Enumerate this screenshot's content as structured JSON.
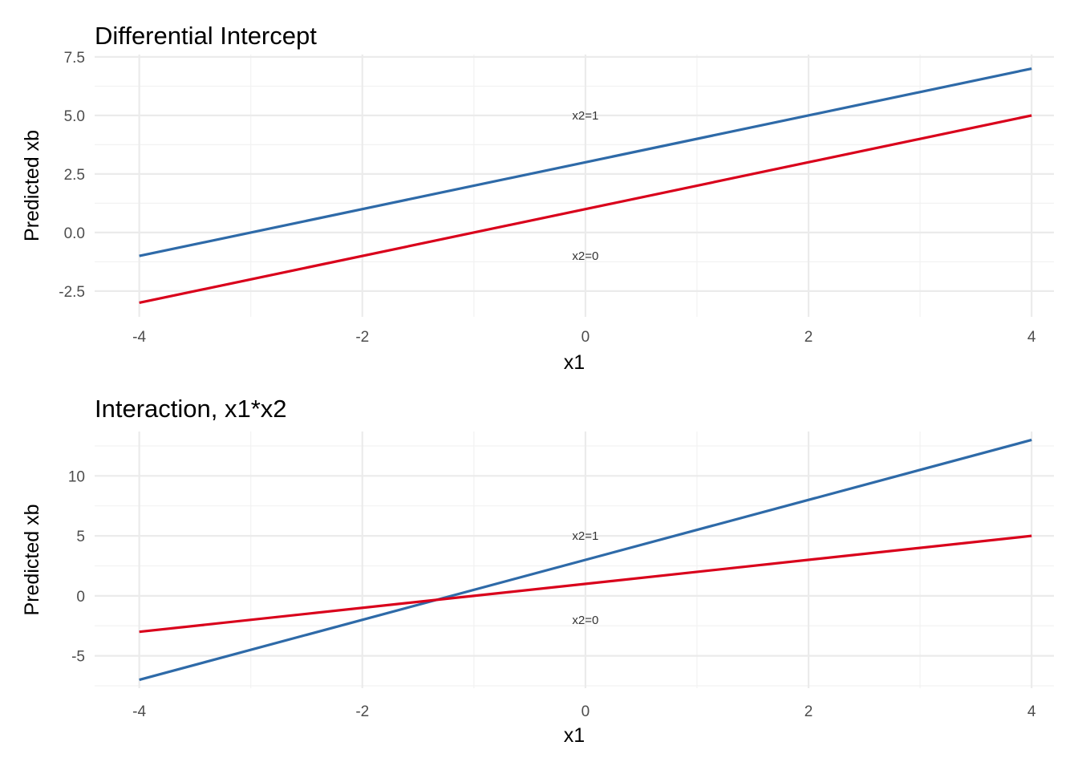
{
  "chart_data": [
    {
      "type": "line",
      "title": "Differential Intercept",
      "xlabel": "x1",
      "ylabel": "Predicted xb",
      "xlim": [
        -4.4,
        4.2
      ],
      "ylim": [
        -3.6,
        7.6
      ],
      "x_ticks": [
        -4,
        -2,
        0,
        2,
        4
      ],
      "x_tick_labels": [
        "-4",
        "-2",
        "0",
        "2",
        "4"
      ],
      "y_ticks": [
        -2.5,
        0,
        2.5,
        5,
        7.5
      ],
      "y_tick_labels": [
        "-2.5",
        "0.0",
        "2.5",
        "5.0",
        "7.5"
      ],
      "grid": true,
      "series": [
        {
          "name": "x2=1",
          "color": "#2e6aa8",
          "x": [
            -4,
            4
          ],
          "y": [
            -1,
            7
          ]
        },
        {
          "name": "x2=0",
          "color": "#d9001b",
          "x": [
            -4,
            4
          ],
          "y": [
            -3,
            5
          ]
        }
      ],
      "annotations": [
        {
          "text": "x2=1",
          "x": 0,
          "y": 5.0
        },
        {
          "text": "x2=0",
          "x": 0,
          "y": -1.0
        }
      ]
    },
    {
      "type": "line",
      "title": "Interaction, x1*x2",
      "xlabel": "x1",
      "ylabel": "Predicted xb",
      "xlim": [
        -4.4,
        4.2
      ],
      "ylim": [
        -7.7,
        13.7
      ],
      "x_ticks": [
        -4,
        -2,
        0,
        2,
        4
      ],
      "x_tick_labels": [
        "-4",
        "-2",
        "0",
        "2",
        "4"
      ],
      "y_ticks": [
        -5,
        0,
        5,
        10
      ],
      "y_tick_labels": [
        "-5",
        "0",
        "5",
        "10"
      ],
      "grid": true,
      "series": [
        {
          "name": "x2=1",
          "color": "#2e6aa8",
          "x": [
            -4,
            4
          ],
          "y": [
            -7,
            13
          ]
        },
        {
          "name": "x2=0",
          "color": "#d9001b",
          "x": [
            -4,
            4
          ],
          "y": [
            -3,
            5
          ]
        }
      ],
      "annotations": [
        {
          "text": "x2=1",
          "x": 0,
          "y": 5.0
        },
        {
          "text": "x2=0",
          "x": 0,
          "y": -2.0
        }
      ]
    }
  ]
}
